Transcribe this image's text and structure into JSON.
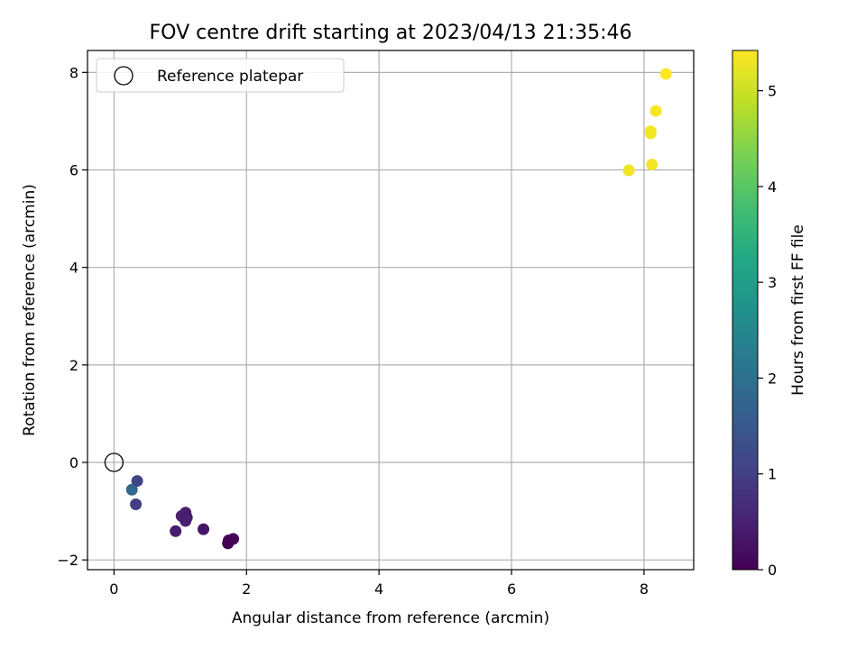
{
  "chart_data": {
    "type": "scatter",
    "title": "FOV centre drift starting at 2023/04/13 21:35:46",
    "xlabel": "Angular distance from reference (arcmin)",
    "ylabel": "Rotation from reference (arcmin)",
    "xlim": [
      -0.4,
      8.75
    ],
    "ylim": [
      -2.2,
      8.45
    ],
    "x_ticks": [
      0,
      2,
      4,
      6,
      8
    ],
    "y_ticks": [
      -2,
      0,
      2,
      4,
      6,
      8
    ],
    "grid": true,
    "legend": {
      "location": "upper-left",
      "entries": [
        "Reference platepar"
      ]
    },
    "reference_point": {
      "x": 0.0,
      "y": 0.0,
      "label": "Reference platepar"
    },
    "colorbar": {
      "label": "Hours from first FF file",
      "colormap": "viridis",
      "range": [
        0,
        5.42
      ],
      "ticks": [
        0,
        1,
        2,
        3,
        4,
        5
      ]
    },
    "points": [
      {
        "x": 0.27,
        "y": -0.56,
        "hours": 1.85
      },
      {
        "x": 0.35,
        "y": -0.38,
        "hours": 1.1
      },
      {
        "x": 0.33,
        "y": -0.86,
        "hours": 1.0
      },
      {
        "x": 1.08,
        "y": -1.03,
        "hours": 0.45
      },
      {
        "x": 1.02,
        "y": -1.1,
        "hours": 0.5
      },
      {
        "x": 1.1,
        "y": -1.13,
        "hours": 0.4
      },
      {
        "x": 1.08,
        "y": -1.2,
        "hours": 0.48
      },
      {
        "x": 0.93,
        "y": -1.41,
        "hours": 0.42
      },
      {
        "x": 1.35,
        "y": -1.37,
        "hours": 0.3
      },
      {
        "x": 1.73,
        "y": -1.6,
        "hours": 0.12
      },
      {
        "x": 1.8,
        "y": -1.57,
        "hours": 0.08
      },
      {
        "x": 1.72,
        "y": -1.66,
        "hours": 0.02
      },
      {
        "x": 7.77,
        "y": 5.99,
        "hours": 5.3
      },
      {
        "x": 8.12,
        "y": 6.11,
        "hours": 5.35
      },
      {
        "x": 8.1,
        "y": 6.75,
        "hours": 5.32
      },
      {
        "x": 8.1,
        "y": 6.79,
        "hours": 5.33
      },
      {
        "x": 8.18,
        "y": 7.21,
        "hours": 5.38
      },
      {
        "x": 8.33,
        "y": 7.97,
        "hours": 5.42
      }
    ]
  }
}
